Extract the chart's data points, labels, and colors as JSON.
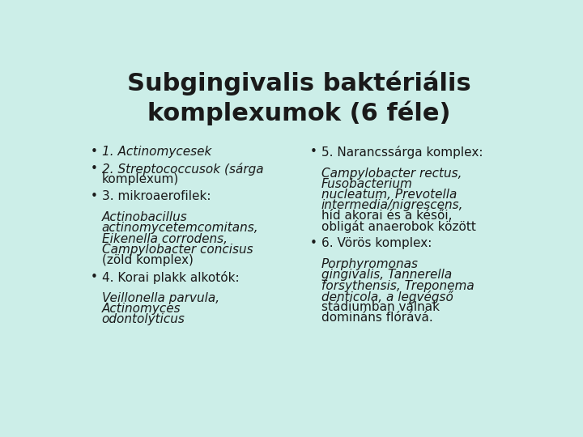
{
  "background_color": "#cceee8",
  "title": "Subgingivalis baktériális\nkomplexumok (6 féle)",
  "title_fontsize": 22,
  "body_fontsize": 11,
  "bullet_fontsize": 11,
  "left_items": [
    [
      {
        "text": "1. ",
        "italic": false
      },
      {
        "text": "Actinomycesek",
        "italic": true
      }
    ],
    [
      {
        "text": "2. ",
        "italic": false
      },
      {
        "text": "Streptococcusok",
        "italic": true
      },
      {
        "text": " (sárga\nkomplexum)",
        "italic": false
      }
    ],
    [
      {
        "text": "3. mikroaerofilek:\n",
        "italic": false
      },
      {
        "text": "Actinobacillus\nactinomycetemcomitans,\nEikenella corrodens,\nCampylobacter concisus",
        "italic": true
      },
      {
        "text": "\n(zöld komplex)",
        "italic": false
      }
    ],
    [
      {
        "text": "4. Korai plakk alkotók:\n",
        "italic": false
      },
      {
        "text": "Veillonella parvula,\nActinomyces\nodontolyticus",
        "italic": true
      }
    ]
  ],
  "right_items": [
    [
      {
        "text": "5. Narancssárga komplex:\n",
        "italic": false
      },
      {
        "text": "Campylobacter rectus,\nFusobacterium\nnucleatum, Prevotella\nintermedia/nigrescens,",
        "italic": true
      },
      {
        "text": "\nhíd akorai és a késői,\nobligát anaerobok között",
        "italic": false
      }
    ],
    [
      {
        "text": "6. Vörös komplex:\n",
        "italic": false
      },
      {
        "text": "Porphyromonas\ngingivalis, Tannerella\nforsythensis, Treponema\ndenticola,",
        "italic": true
      },
      {
        "text": " a legvégső\nstádiumban válnak\ndomináns flórává.",
        "italic": false
      }
    ]
  ]
}
